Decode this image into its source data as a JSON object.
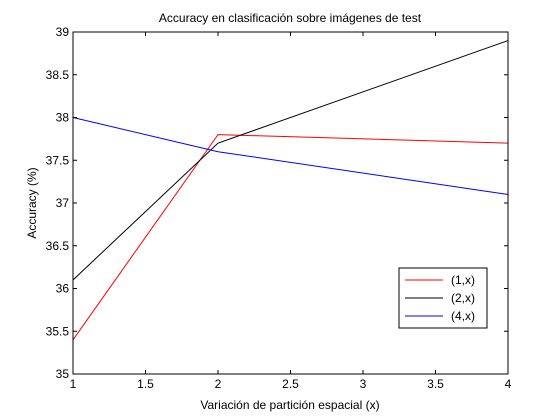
{
  "chart_data": {
    "type": "line",
    "title": "Accuracy en clasificación sobre imágenes de test",
    "xlabel": "Variación de partición espacial (x)",
    "ylabel": "Accuracy (%)",
    "xlim": [
      1,
      4
    ],
    "ylim": [
      35,
      39
    ],
    "x_ticks": [
      1,
      1.5,
      2,
      2.5,
      3,
      3.5,
      4
    ],
    "x_tick_labels": [
      "1",
      "1.5",
      "2",
      "2.5",
      "3",
      "3.5",
      "4"
    ],
    "y_ticks": [
      35,
      35.5,
      36,
      36.5,
      37,
      37.5,
      38,
      38.5,
      39
    ],
    "y_tick_labels": [
      "35",
      "35.5",
      "36",
      "36.5",
      "37",
      "37.5",
      "38",
      "38.5",
      "39"
    ],
    "grid": false,
    "legend_position": "bottom-right",
    "series": [
      {
        "name": "(1,x)",
        "color": "#ff0000",
        "x": [
          1,
          2,
          4
        ],
        "y": [
          35.4,
          37.8,
          37.7
        ]
      },
      {
        "name": "(2,x)",
        "color": "#000000",
        "x": [
          1,
          2,
          4
        ],
        "y": [
          36.1,
          37.7,
          38.9
        ]
      },
      {
        "name": "(4,x)",
        "color": "#0000ff",
        "x": [
          1,
          2,
          4
        ],
        "y": [
          38.0,
          37.6,
          37.1
        ]
      }
    ]
  }
}
